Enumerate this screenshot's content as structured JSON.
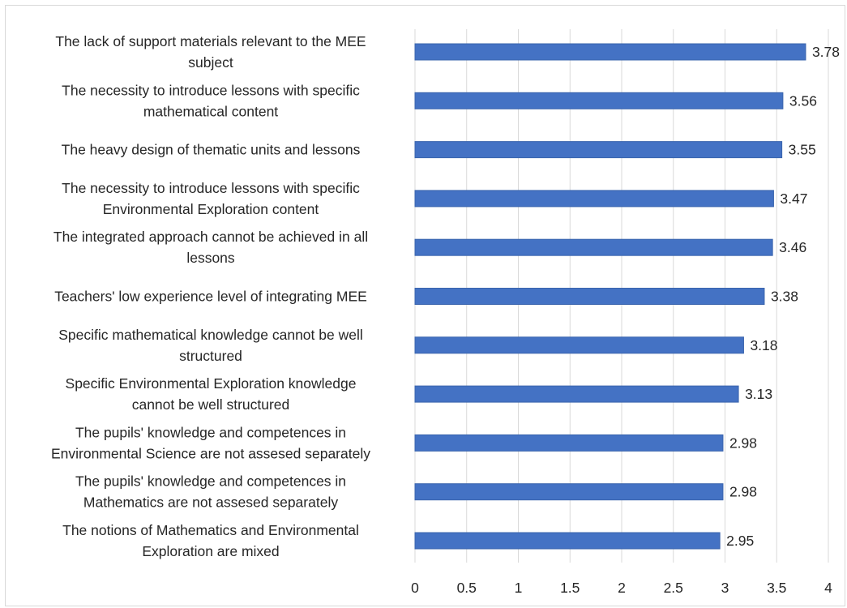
{
  "chart_data": {
    "type": "bar",
    "orientation": "horizontal",
    "categories": [
      [
        "The lack of support materials relevant to the MEE",
        "subject"
      ],
      [
        "The necessity to introduce lessons with specific",
        "mathematical content"
      ],
      [
        "The heavy design of thematic units and lessons"
      ],
      [
        "The necessity to introduce lessons with specific",
        "Environmental Exploration content"
      ],
      [
        "The integrated approach cannot be achieved in all",
        "lessons"
      ],
      [
        "Teachers' low experience level of integrating MEE"
      ],
      [
        "Specific mathematical knowledge cannot be well",
        "structured"
      ],
      [
        "Specific Environmental Exploration knowledge",
        "cannot be well structured"
      ],
      [
        "The pupils' knowledge and competences in",
        "Environmental Science are not assesed separately"
      ],
      [
        "The pupils' knowledge and competences in",
        "Mathematics are not assesed separately"
      ],
      [
        "The notions of Mathematics and Environmental",
        "Exploration are mixed"
      ]
    ],
    "values": [
      3.78,
      3.56,
      3.55,
      3.47,
      3.46,
      3.38,
      3.18,
      3.13,
      2.98,
      2.98,
      2.95
    ],
    "value_labels": [
      "3.78",
      "3.56",
      "3.55",
      "3.47",
      "3.46",
      "3.38",
      "3.18",
      "3.13",
      "2.98",
      "2.98",
      "2.95"
    ],
    "xlim": [
      0,
      4
    ],
    "xticks": [
      0,
      0.5,
      1,
      1.5,
      2,
      2.5,
      3,
      3.5,
      4
    ],
    "xtick_labels": [
      "0",
      "0.5",
      "1",
      "1.5",
      "2",
      "2.5",
      "3",
      "3.5",
      "4"
    ],
    "grid": "vertical",
    "legend": "none",
    "colors": {
      "bar": "#4472c4",
      "bar_edge": "#3a64ad",
      "grid": "#d9d9d9",
      "axis": "#bfbfbf",
      "text": "#262626"
    }
  }
}
